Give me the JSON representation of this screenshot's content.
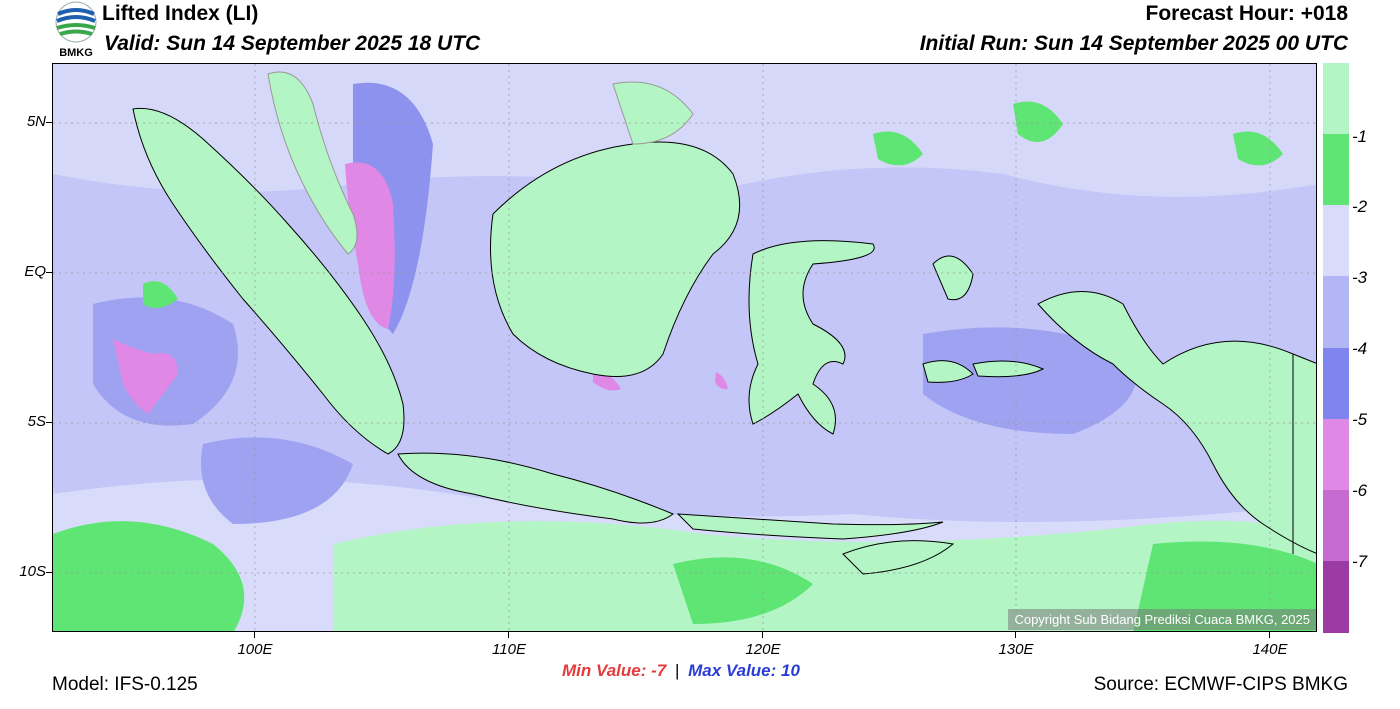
{
  "header": {
    "title": "Lifted Index (LI)",
    "valid": "Valid: Sun 14 September 2025 18 UTC",
    "forecast_hour": "Forecast Hour: +018",
    "initial_run": "Initial Run: Sun 14 September 2025 00 UTC",
    "logo_text": "BMKG"
  },
  "axes": {
    "y_labels": [
      "5N",
      "EQ",
      "5S",
      "10S"
    ],
    "x_labels": [
      "100E",
      "110E",
      "120E",
      "130E",
      "140E"
    ]
  },
  "colorbar": {
    "labels": [
      "-1",
      "-2",
      "-3",
      "-4",
      "-5",
      "-6",
      "-7"
    ],
    "colors": [
      "#b4f5c6",
      "#5fe574",
      "#d9dbfa",
      "#b3b6f4",
      "#7f85ee",
      "#e088e6",
      "#c66cd1",
      "#9b3aa3"
    ]
  },
  "stats": {
    "min_text": "Min Value:  -7",
    "separator": "|",
    "max_text": "Max Value:  10"
  },
  "footer": {
    "model": "Model: IFS-0.125",
    "source": "Source: ECMWF-CIPS BMKG",
    "copyright": "Copyright Sub Bidang Prediksi Cuaca BMKG, 2025"
  }
}
